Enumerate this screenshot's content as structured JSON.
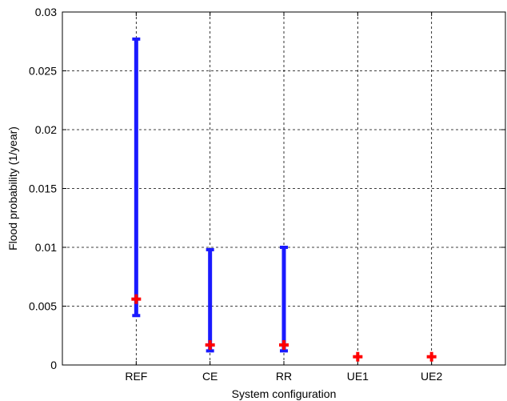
{
  "chart_data": {
    "type": "errorbar",
    "xlabel": "System configuration",
    "ylabel": "Flood probability (1/year)",
    "categories": [
      "REF",
      "CE",
      "RR",
      "UE1",
      "UE2"
    ],
    "ylim": [
      0,
      0.03
    ],
    "yticks": [
      0,
      0.005,
      0.01,
      0.015,
      0.02,
      0.025,
      0.03
    ],
    "ytick_labels": [
      "0",
      "0.005",
      "0.01",
      "0.015",
      "0.02",
      "0.025",
      "0.03"
    ],
    "grid": true,
    "series": [
      {
        "kind": "range",
        "color": "#1a1aff",
        "low": [
          0.0042,
          0.0012,
          0.0012,
          null,
          null
        ],
        "high": [
          0.0277,
          0.0098,
          0.01,
          null,
          null
        ]
      },
      {
        "kind": "point",
        "marker": "plus",
        "color": "#ff0000",
        "values": [
          0.0056,
          0.0017,
          0.0017,
          0.0007,
          0.0007
        ]
      }
    ]
  }
}
